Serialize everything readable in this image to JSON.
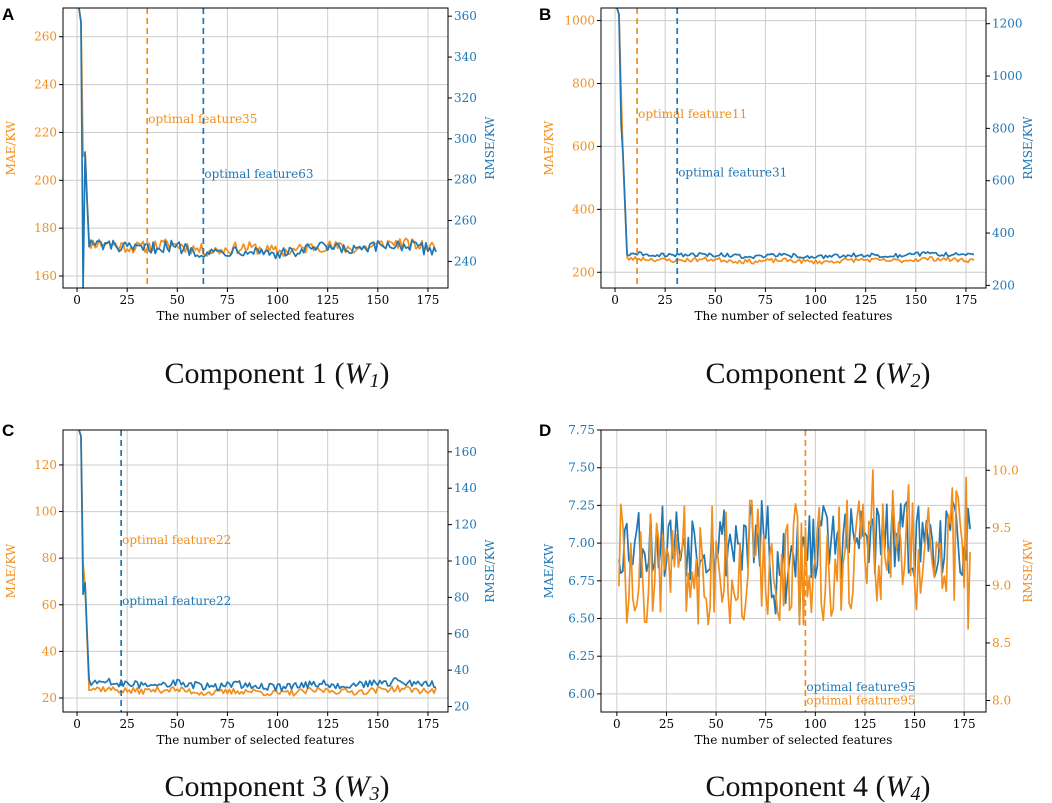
{
  "colors": {
    "orange": "#f28e1c",
    "blue": "#1f77b4",
    "grid": "#cccccc",
    "axis": "#000000"
  },
  "chart_data": [
    {
      "type": "line",
      "panel": "A",
      "caption": {
        "prefix": "Component 1 (",
        "var": "W",
        "sub": "1",
        "suffix": ")"
      },
      "xlabel": "The number of selected features",
      "ylabel_left": "MAE/KW",
      "ylabel_right": "RMSE/KW",
      "left_color": "orange",
      "right_color": "blue",
      "xlim": [
        -7,
        185
      ],
      "xticks": [
        0,
        25,
        50,
        75,
        100,
        125,
        150,
        175
      ],
      "ylim_left": [
        155,
        272
      ],
      "yticks_left": [
        160,
        180,
        200,
        220,
        240,
        260
      ],
      "ylim_right": [
        227,
        364
      ],
      "yticks_right": [
        240,
        260,
        280,
        300,
        320,
        340,
        360
      ],
      "shape": {
        "n": 179,
        "drop": 5,
        "final": 0.13,
        "noise": 0.05,
        "seed": 11,
        "spike": 210
      },
      "series": [
        {
          "name": "MAE",
          "axis": "left",
          "color": "orange",
          "start": 272,
          "mean": 172,
          "amp": 2.5
        },
        {
          "name": "RMSE",
          "axis": "right",
          "color": "blue",
          "start": 364,
          "mean": 246,
          "amp": 3.0
        }
      ],
      "vlines": [
        {
          "x": 35,
          "color": "orange",
          "label": "optimal feature35",
          "label_axis": "left",
          "label_y": 224
        },
        {
          "x": 63,
          "color": "blue",
          "label": "optimal feature63",
          "label_axis": "left",
          "label_y": 201
        }
      ]
    },
    {
      "type": "line",
      "panel": "B",
      "caption": {
        "prefix": "Component 2 (",
        "var": "W",
        "sub": "2",
        "suffix": ")"
      },
      "xlabel": "The number of selected features",
      "ylabel_left": "MAE/KW",
      "ylabel_right": "RMSE/KW",
      "left_color": "orange",
      "right_color": "blue",
      "xlim": [
        -7,
        185
      ],
      "xticks": [
        0,
        25,
        50,
        75,
        100,
        125,
        150,
        175
      ],
      "ylim_left": [
        150,
        1040
      ],
      "yticks_left": [
        200,
        400,
        600,
        800,
        1000
      ],
      "ylim_right": [
        190,
        1260
      ],
      "yticks_right": [
        200,
        400,
        600,
        800,
        1000,
        1200
      ],
      "shape": {
        "n": 179,
        "drop": 5,
        "final": 0.02,
        "noise": 0.012,
        "seed": 23,
        "spike": 780
      },
      "series": [
        {
          "name": "MAE",
          "axis": "left",
          "color": "orange",
          "start": 1040,
          "mean": 238,
          "amp": 7
        },
        {
          "name": "RMSE",
          "axis": "right",
          "color": "blue",
          "start": 1260,
          "mean": 315,
          "amp": 8
        }
      ],
      "vlines": [
        {
          "x": 11,
          "color": "orange",
          "label": "optimal feature11",
          "label_axis": "left",
          "label_y": 690
        },
        {
          "x": 31,
          "color": "blue",
          "label": "optimal feature31",
          "label_axis": "left",
          "label_y": 505
        }
      ]
    },
    {
      "type": "line",
      "panel": "C",
      "caption": {
        "prefix": "Component 3 (",
        "var": "W",
        "sub": "3",
        "suffix": ")"
      },
      "xlabel": "The number of selected features",
      "ylabel_left": "MAE/KW",
      "ylabel_right": "RMSE/KW",
      "left_color": "orange",
      "right_color": "blue",
      "xlim": [
        -7,
        185
      ],
      "xticks": [
        0,
        25,
        50,
        75,
        100,
        125,
        150,
        175
      ],
      "ylim_left": [
        14,
        135
      ],
      "yticks_left": [
        20,
        40,
        60,
        80,
        100,
        120
      ],
      "ylim_right": [
        17,
        172
      ],
      "yticks_right": [
        20,
        40,
        60,
        80,
        100,
        120,
        140,
        160
      ],
      "shape": {
        "n": 179,
        "drop": 5,
        "final": 0.05,
        "noise": 0.03,
        "seed": 37,
        "spike": 78
      },
      "series": [
        {
          "name": "MAE",
          "axis": "left",
          "color": "orange",
          "start": 135,
          "mean": 23,
          "amp": 1.4
        },
        {
          "name": "RMSE",
          "axis": "right",
          "color": "blue",
          "start": 172,
          "mean": 32,
          "amp": 2.2
        }
      ],
      "vlines": [
        {
          "x": 22,
          "color": "blue",
          "label": "optimal feature22",
          "label_axis": "left",
          "label_y": 86,
          "label_color": "orange"
        },
        {
          "x": 22,
          "color": "blue",
          "label": "optimal feature22",
          "label_axis": "left",
          "label_y": 60,
          "label_color": "blue",
          "hide_line": true
        }
      ]
    },
    {
      "type": "line",
      "panel": "D",
      "caption": {
        "prefix": "Component 4 (",
        "var": "W",
        "sub": "4",
        "suffix": ")"
      },
      "xlabel": "The number of selected features",
      "ylabel_left": "MAE/KW",
      "ylabel_right": "RMSE/KW",
      "left_color": "blue",
      "right_color": "orange",
      "xlim": [
        -8,
        186
      ],
      "xticks": [
        0,
        25,
        50,
        75,
        100,
        125,
        150,
        175
      ],
      "ylim_left": [
        5.88,
        7.75
      ],
      "yticks_left": [
        "6.00",
        "6.25",
        "6.50",
        "6.75",
        "7.00",
        "7.25",
        "7.50",
        "7.75"
      ],
      "ylim_right": [
        7.9,
        10.35
      ],
      "yticks_right": [
        "8.0",
        "8.5",
        "9.0",
        "9.5",
        "10.0"
      ],
      "shape": {
        "n": 178,
        "drop": 0,
        "final": 0,
        "noise": 1,
        "seed": 53,
        "spike": 0
      },
      "series": [
        {
          "name": "MAE",
          "axis": "left",
          "color": "blue",
          "start": 7.0,
          "mean": 7.02,
          "amp": 0.22
        },
        {
          "name": "RMSE",
          "axis": "right",
          "color": "orange",
          "start": 9.2,
          "mean": 9.2,
          "amp": 0.45
        }
      ],
      "vlines": [
        {
          "x": 95,
          "color": "orange",
          "label": "optimal feature95",
          "label_axis": "left",
          "label_y": 6.02,
          "label_color": "blue"
        },
        {
          "x": 95,
          "color": "orange",
          "label": "optimal feature95",
          "label_axis": "left",
          "label_y": 5.93,
          "label_color": "orange",
          "hide_line": true
        }
      ]
    }
  ]
}
